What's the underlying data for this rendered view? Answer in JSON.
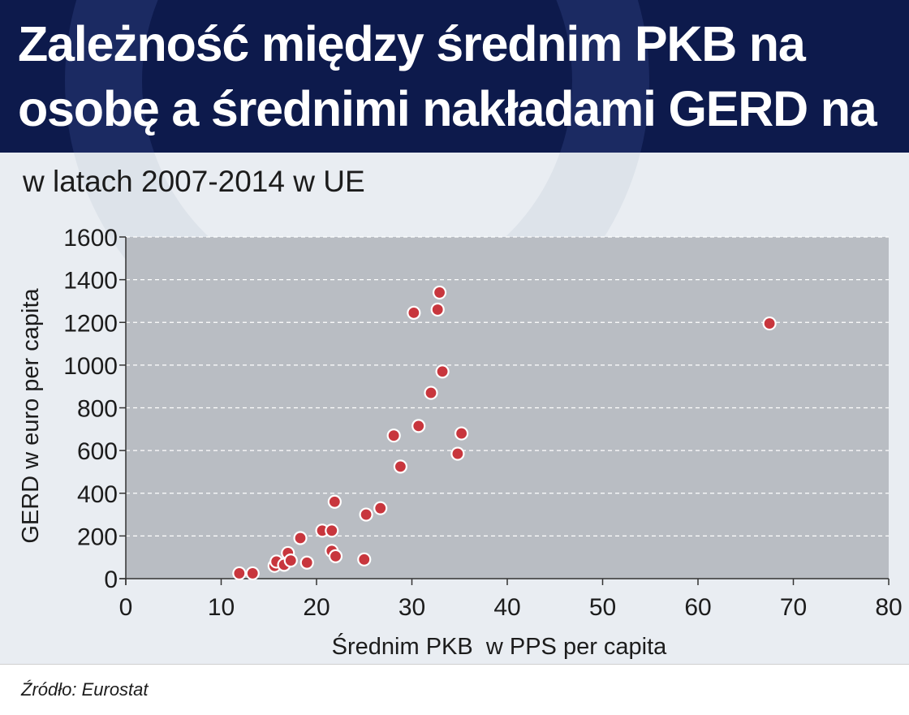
{
  "title": "Zależność między średnim PKB na osobę a średnimi nakładami GERD na osobę",
  "subtitle": "w latach 2007-2014 w UE",
  "source": "Źródło: Eurostat",
  "colors": {
    "header_bg": "#0d1a4c",
    "plot_bg": "#b9bdc3",
    "point_fill": "#c8363d",
    "point_stroke": "#ffffff"
  },
  "chart_data": {
    "type": "scatter",
    "xlabel": "Średnim PKB  w PPS per capita",
    "ylabel": "GERD w euro per capita",
    "xlim": [
      0,
      80
    ],
    "ylim": [
      0,
      1600
    ],
    "x_ticks": [
      0,
      10,
      20,
      30,
      40,
      50,
      60,
      70,
      80
    ],
    "y_ticks": [
      0,
      200,
      400,
      600,
      800,
      1000,
      1200,
      1400,
      1600
    ],
    "grid": "horizontal dashed",
    "points": [
      {
        "x": 11.9,
        "y": 25
      },
      {
        "x": 13.3,
        "y": 25
      },
      {
        "x": 15.6,
        "y": 60
      },
      {
        "x": 15.8,
        "y": 80
      },
      {
        "x": 16.6,
        "y": 65
      },
      {
        "x": 17.0,
        "y": 120
      },
      {
        "x": 17.3,
        "y": 85
      },
      {
        "x": 18.3,
        "y": 190
      },
      {
        "x": 19.0,
        "y": 75
      },
      {
        "x": 20.6,
        "y": 225
      },
      {
        "x": 21.6,
        "y": 225
      },
      {
        "x": 21.6,
        "y": 130
      },
      {
        "x": 22.0,
        "y": 105
      },
      {
        "x": 21.9,
        "y": 360
      },
      {
        "x": 25.0,
        "y": 90
      },
      {
        "x": 25.2,
        "y": 300
      },
      {
        "x": 26.7,
        "y": 330
      },
      {
        "x": 28.1,
        "y": 670
      },
      {
        "x": 28.8,
        "y": 525
      },
      {
        "x": 30.7,
        "y": 715
      },
      {
        "x": 30.2,
        "y": 1245
      },
      {
        "x": 32.0,
        "y": 870
      },
      {
        "x": 32.7,
        "y": 1260
      },
      {
        "x": 32.9,
        "y": 1340
      },
      {
        "x": 33.2,
        "y": 970
      },
      {
        "x": 34.8,
        "y": 585
      },
      {
        "x": 35.2,
        "y": 680
      },
      {
        "x": 67.5,
        "y": 1195
      }
    ]
  }
}
